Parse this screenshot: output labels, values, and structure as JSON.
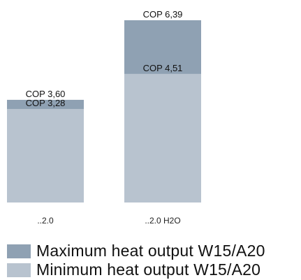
{
  "chart_data": {
    "type": "bar",
    "layout": "overlapping",
    "categories": [
      "..2.0",
      "..2.0 H2O"
    ],
    "series": [
      {
        "name": "Maximum heat output W15/A20",
        "values": [
          3.6,
          6.39
        ],
        "labels": [
          "COP 3,60",
          "COP 6,39"
        ],
        "color": "#8fa1b3"
      },
      {
        "name": "Minimum heat output W15/A20",
        "values": [
          3.28,
          4.51
        ],
        "labels": [
          "COP 3,28",
          "COP 4,51"
        ],
        "color": "#b8c3cf"
      }
    ],
    "title": "",
    "xlabel": "",
    "ylabel": "",
    "ylim": [
      0,
      6.39
    ],
    "grid": false,
    "axes_visible": false,
    "legend": "bottom"
  }
}
